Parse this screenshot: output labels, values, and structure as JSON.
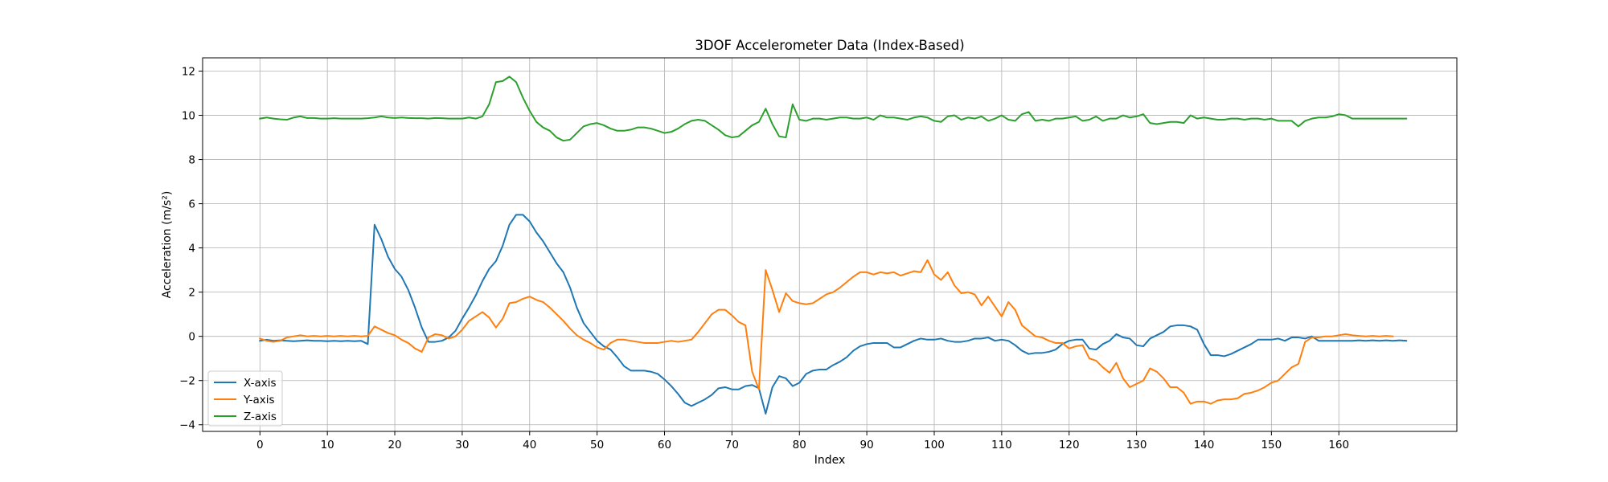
{
  "chart_data": {
    "type": "line",
    "title": "3DOF Accelerometer Data (Index-Based)",
    "xlabel": "Index",
    "ylabel": "Acceleration (m/s²)",
    "xlim": [
      -8.5,
      177.5
    ],
    "ylim": [
      -4.3,
      12.6
    ],
    "xticks": [
      0,
      10,
      20,
      30,
      40,
      50,
      60,
      70,
      80,
      90,
      100,
      110,
      120,
      130,
      140,
      150,
      160
    ],
    "yticks": [
      -4,
      -2,
      0,
      2,
      4,
      6,
      8,
      10,
      12
    ],
    "grid": true,
    "legend_position": "lower-left",
    "x_start": 0,
    "series": [
      {
        "name": "X-axis",
        "color": "#1f77b4",
        "values": [
          -0.2,
          -0.15,
          -0.2,
          -0.18,
          -0.2,
          -0.22,
          -0.2,
          -0.18,
          -0.2,
          -0.2,
          -0.22,
          -0.2,
          -0.22,
          -0.2,
          -0.22,
          -0.2,
          -0.35,
          5.05,
          4.4,
          3.6,
          3.05,
          2.7,
          2.1,
          1.3,
          0.4,
          -0.25,
          -0.25,
          -0.2,
          -0.05,
          0.25,
          0.8,
          1.3,
          1.85,
          2.5,
          3.05,
          3.4,
          4.1,
          5.05,
          5.5,
          5.5,
          5.2,
          4.7,
          4.3,
          3.8,
          3.3,
          2.9,
          2.2,
          1.3,
          0.6,
          0.2,
          -0.2,
          -0.45,
          -0.6,
          -0.95,
          -1.35,
          -1.55,
          -1.55,
          -1.55,
          -1.6,
          -1.7,
          -1.95,
          -2.25,
          -2.6,
          -3.0,
          -3.15,
          -3.0,
          -2.85,
          -2.65,
          -2.35,
          -2.3,
          -2.4,
          -2.4,
          -2.25,
          -2.2,
          -2.35,
          -3.5,
          -2.3,
          -1.8,
          -1.9,
          -2.25,
          -2.1,
          -1.7,
          -1.55,
          -1.5,
          -1.5,
          -1.3,
          -1.15,
          -0.95,
          -0.65,
          -0.45,
          -0.35,
          -0.3,
          -0.3,
          -0.3,
          -0.5,
          -0.5,
          -0.35,
          -0.2,
          -0.1,
          -0.15,
          -0.15,
          -0.1,
          -0.2,
          -0.25,
          -0.25,
          -0.2,
          -0.1,
          -0.1,
          -0.05,
          -0.2,
          -0.15,
          -0.2,
          -0.4,
          -0.65,
          -0.8,
          -0.75,
          -0.75,
          -0.7,
          -0.6,
          -0.35,
          -0.2,
          -0.15,
          -0.15,
          -0.55,
          -0.6,
          -0.35,
          -0.2,
          0.1,
          -0.05,
          -0.1,
          -0.4,
          -0.45,
          -0.1,
          0.05,
          0.2,
          0.45,
          0.5,
          0.5,
          0.45,
          0.3,
          -0.35,
          -0.85,
          -0.85,
          -0.9,
          -0.8,
          -0.65,
          -0.5,
          -0.35,
          -0.15,
          -0.15,
          -0.15,
          -0.1,
          -0.2,
          -0.05,
          -0.05,
          -0.1,
          0.0,
          -0.2,
          -0.2,
          -0.2,
          -0.2,
          -0.2,
          -0.2,
          -0.18,
          -0.2,
          -0.18,
          -0.2,
          -0.18,
          -0.2,
          -0.18,
          -0.2
        ]
      },
      {
        "name": "Y-axis",
        "color": "#ff7f0e",
        "values": [
          -0.1,
          -0.2,
          -0.25,
          -0.2,
          -0.05,
          0.0,
          0.05,
          0.0,
          0.02,
          0.0,
          0.02,
          0.0,
          0.02,
          0.0,
          0.02,
          0.0,
          0.02,
          0.45,
          0.3,
          0.15,
          0.05,
          -0.15,
          -0.3,
          -0.55,
          -0.7,
          -0.05,
          0.1,
          0.05,
          -0.1,
          0.0,
          0.3,
          0.7,
          0.9,
          1.1,
          0.85,
          0.4,
          0.8,
          1.5,
          1.55,
          1.7,
          1.8,
          1.65,
          1.55,
          1.3,
          1.0,
          0.7,
          0.35,
          0.05,
          -0.15,
          -0.3,
          -0.5,
          -0.6,
          -0.3,
          -0.15,
          -0.15,
          -0.2,
          -0.25,
          -0.3,
          -0.3,
          -0.3,
          -0.25,
          -0.2,
          -0.25,
          -0.2,
          -0.15,
          0.2,
          0.6,
          1.0,
          1.2,
          1.2,
          0.95,
          0.65,
          0.5,
          -1.6,
          -2.4,
          3.0,
          2.1,
          1.1,
          1.95,
          1.6,
          1.5,
          1.45,
          1.5,
          1.7,
          1.9,
          2.0,
          2.2,
          2.45,
          2.7,
          2.9,
          2.9,
          2.8,
          2.9,
          2.85,
          2.9,
          2.75,
          2.85,
          2.95,
          2.9,
          3.45,
          2.8,
          2.55,
          2.9,
          2.3,
          1.95,
          2.0,
          1.9,
          1.4,
          1.8,
          1.35,
          0.9,
          1.55,
          1.2,
          0.5,
          0.25,
          0.0,
          -0.05,
          -0.2,
          -0.3,
          -0.3,
          -0.55,
          -0.45,
          -0.4,
          -1.0,
          -1.1,
          -1.4,
          -1.65,
          -1.2,
          -1.9,
          -2.3,
          -2.15,
          -2.0,
          -1.45,
          -1.6,
          -1.9,
          -2.3,
          -2.3,
          -2.55,
          -3.05,
          -2.95,
          -2.95,
          -3.05,
          -2.9,
          -2.85,
          -2.85,
          -2.8,
          -2.6,
          -2.55,
          -2.45,
          -2.3,
          -2.1,
          -2.0,
          -1.7,
          -1.4,
          -1.25,
          -0.25,
          -0.05,
          -0.05,
          0.0,
          0.0,
          0.05,
          0.1,
          0.05,
          0.02,
          0.0,
          0.02,
          0.0,
          0.02,
          0.0
        ]
      },
      {
        "name": "Z-axis",
        "color": "#2ca02c",
        "values": [
          9.85,
          9.9,
          9.85,
          9.82,
          9.8,
          9.9,
          9.95,
          9.88,
          9.88,
          9.85,
          9.85,
          9.87,
          9.85,
          9.85,
          9.85,
          9.85,
          9.87,
          9.9,
          9.95,
          9.9,
          9.88,
          9.9,
          9.88,
          9.87,
          9.87,
          9.85,
          9.88,
          9.87,
          9.85,
          9.85,
          9.85,
          9.9,
          9.85,
          9.95,
          10.5,
          11.5,
          11.55,
          11.75,
          11.5,
          10.8,
          10.2,
          9.7,
          9.45,
          9.3,
          9.0,
          8.85,
          8.9,
          9.2,
          9.5,
          9.6,
          9.65,
          9.55,
          9.4,
          9.3,
          9.3,
          9.35,
          9.45,
          9.45,
          9.4,
          9.3,
          9.2,
          9.25,
          9.4,
          9.6,
          9.75,
          9.8,
          9.75,
          9.55,
          9.35,
          9.1,
          9.0,
          9.05,
          9.3,
          9.55,
          9.7,
          10.3,
          9.6,
          9.05,
          9.0,
          10.5,
          9.8,
          9.75,
          9.85,
          9.85,
          9.8,
          9.85,
          9.9,
          9.9,
          9.85,
          9.85,
          9.9,
          9.8,
          10.0,
          9.9,
          9.9,
          9.85,
          9.8,
          9.9,
          9.95,
          9.9,
          9.75,
          9.7,
          9.95,
          10.0,
          9.8,
          9.9,
          9.85,
          9.95,
          9.75,
          9.85,
          10.0,
          9.8,
          9.75,
          10.05,
          10.15,
          9.75,
          9.8,
          9.75,
          9.85,
          9.85,
          9.9,
          9.95,
          9.75,
          9.8,
          9.95,
          9.75,
          9.85,
          9.85,
          10.0,
          9.9,
          9.95,
          10.05,
          9.65,
          9.6,
          9.65,
          9.7,
          9.7,
          9.65,
          10.0,
          9.85,
          9.9,
          9.85,
          9.8,
          9.8,
          9.85,
          9.85,
          9.8,
          9.85,
          9.85,
          9.8,
          9.85,
          9.75,
          9.75,
          9.75,
          9.5,
          9.75,
          9.85,
          9.9,
          9.9,
          9.95,
          10.05,
          10.0,
          9.85,
          9.85,
          9.85,
          9.85,
          9.85,
          9.85,
          9.85,
          9.85,
          9.85
        ]
      }
    ]
  }
}
